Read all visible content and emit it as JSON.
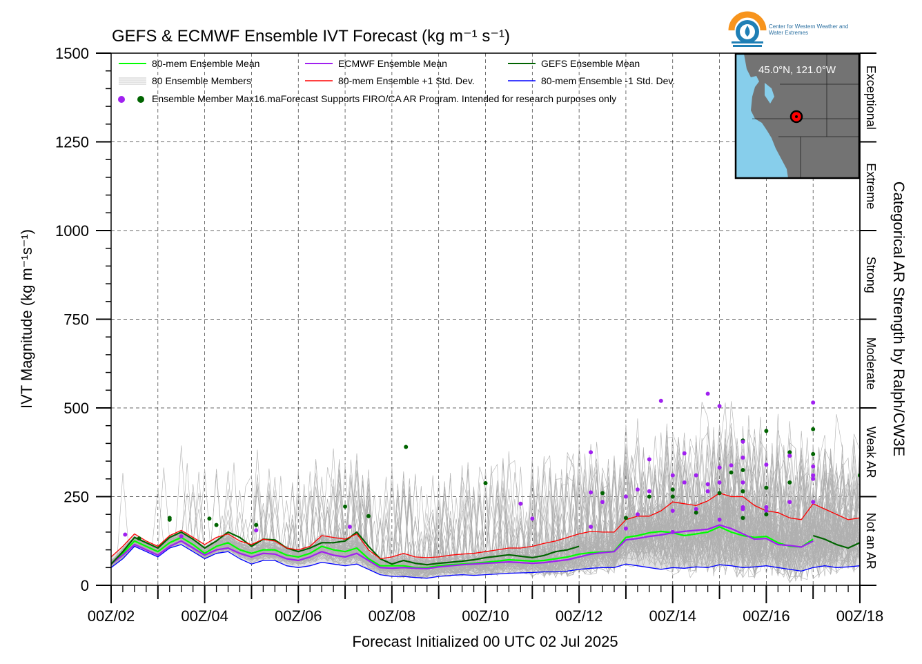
{
  "chart_data": {
    "type": "line",
    "title": "GEFS & ECMWF Ensemble IVT Forecast (kg m⁻¹ s⁻¹)",
    "ylabel": "IVT Magnitude (kg m⁻¹s⁻¹)",
    "xlabel": "Forecast Initialized 00 UTC 02 Jul 2025",
    "right_axis_label": "Categorical AR Strength by Ralph/CW3E",
    "ylim": [
      0,
      1500
    ],
    "xlim_days": [
      2,
      18
    ],
    "grid": true,
    "legend_position": "top-left",
    "y_ticks": [
      "0",
      "250",
      "500",
      "750",
      "1000",
      "1250",
      "1500"
    ],
    "x_ticks": [
      "00Z/02",
      "00Z/04",
      "00Z/06",
      "00Z/08",
      "00Z/10",
      "00Z/12",
      "00Z/14",
      "00Z/16",
      "00Z/18"
    ],
    "categories": [
      "Not an AR",
      "Weak AR",
      "Moderate",
      "Strong",
      "Extreme",
      "Exceptional"
    ],
    "legend": {
      "ens_mean": "80-mem Ensemble Mean",
      "ecmwf_mean": "ECMWF Ensemble Mean",
      "gefs_mean": "GEFS Ensemble Mean",
      "members": "80 Ensemble Members",
      "plus_sd": "80-mem Ensemble +1 Std. Dev.",
      "minus_sd": "80-mem Ensemble -1 Std. Dev.",
      "max_note": "Ensemble Member Max16.maForecast Supports FIRO/CA AR Program. Intended for research purposes only"
    },
    "inset_label": "45.0°N, 121.0°W",
    "logo_text": "Center for Western Weather and Water Extremes",
    "colors": {
      "ens_mean": "#00ff00",
      "ecmwf_mean": "#a020f0",
      "gefs_mean": "#006400",
      "plus_sd": "#ff0000",
      "minus_sd": "#0000ff",
      "members": "#b0b0b0",
      "ocean": "#87ceeb",
      "land": "#737373"
    },
    "series": [
      {
        "name": "80-mem Ensemble Mean",
        "key": "ens_mean",
        "x": [
          2,
          2.25,
          2.5,
          2.75,
          3,
          3.25,
          3.5,
          3.75,
          4,
          4.25,
          4.5,
          4.75,
          5,
          5.25,
          5.5,
          5.75,
          6,
          6.25,
          6.5,
          6.75,
          7,
          7.25,
          7.5,
          7.75,
          8,
          8.25,
          8.5,
          8.75,
          9,
          9.25,
          9.5,
          9.75,
          10,
          10.25,
          10.5,
          10.75,
          11,
          11.25,
          11.5,
          11.75,
          12,
          12.25,
          12.5,
          12.75,
          13,
          13.25,
          13.5,
          13.75,
          14,
          14.25,
          14.5,
          14.75,
          15,
          15.25,
          15.5,
          15.75,
          16,
          16.25,
          16.5,
          16.75,
          17
        ],
        "y": [
          60,
          90,
          125,
          110,
          95,
          120,
          135,
          115,
          90,
          110,
          120,
          100,
          90,
          100,
          100,
          85,
          80,
          90,
          110,
          100,
          95,
          105,
          75,
          55,
          55,
          55,
          50,
          50,
          55,
          58,
          60,
          62,
          65,
          68,
          72,
          70,
          68,
          70,
          75,
          80,
          88,
          92,
          94,
          96,
          135,
          140,
          148,
          152,
          148,
          140,
          145,
          150,
          165,
          150,
          140,
          135,
          138,
          120,
          110,
          108,
          130
        ],
        "width": 2.2
      },
      {
        "name": "ECMWF Ensemble Mean",
        "key": "ecmwf_mean",
        "x": [
          2,
          2.25,
          2.5,
          2.75,
          3,
          3.25,
          3.5,
          3.75,
          4,
          4.25,
          4.5,
          4.75,
          5,
          5.25,
          5.5,
          5.75,
          6,
          6.25,
          6.5,
          6.75,
          7,
          7.25,
          7.5,
          7.75,
          8,
          8.25,
          8.5,
          8.75,
          9,
          9.25,
          9.5,
          9.75,
          10,
          10.25,
          10.5,
          10.75,
          11,
          11.25,
          11.5,
          11.75,
          12,
          12.25,
          12.5,
          12.75,
          13,
          13.25,
          13.5,
          13.75,
          14,
          14.25,
          14.5,
          14.75,
          15,
          15.25,
          15.5,
          15.75,
          16,
          16.25,
          16.5,
          16.75,
          17
        ],
        "y": [
          60,
          85,
          115,
          100,
          85,
          110,
          125,
          105,
          85,
          100,
          105,
          90,
          80,
          90,
          88,
          75,
          70,
          80,
          95,
          85,
          80,
          90,
          70,
          50,
          48,
          50,
          48,
          47,
          52,
          55,
          58,
          60,
          62,
          64,
          66,
          64,
          62,
          64,
          68,
          72,
          80,
          88,
          92,
          95,
          128,
          132,
          138,
          142,
          148,
          152,
          155,
          158,
          170,
          160,
          145,
          130,
          132,
          115,
          112,
          108,
          125
        ],
        "width": 2.2
      },
      {
        "name": "GEFS Ensemble Mean",
        "key": "gefs_mean",
        "x": [
          2,
          2.25,
          2.5,
          2.75,
          3,
          3.25,
          3.5,
          3.75,
          4,
          4.25,
          4.5,
          4.75,
          5,
          5.25,
          5.5,
          5.75,
          6,
          6.25,
          6.5,
          6.75,
          7,
          7.25,
          7.5,
          7.75,
          8,
          8.25,
          8.5,
          8.75,
          9,
          9.25,
          9.5,
          9.75,
          10,
          10.25,
          10.5,
          10.75,
          11,
          11.25,
          11.5,
          11.75,
          12,
          17,
          17.25,
          17.5,
          17.75,
          18
        ],
        "y": [
          60,
          95,
          135,
          120,
          105,
          135,
          150,
          130,
          105,
          125,
          150,
          135,
          110,
          130,
          128,
          105,
          95,
          105,
          120,
          120,
          125,
          150,
          110,
          75,
          60,
          70,
          62,
          58,
          62,
          65,
          68,
          72,
          78,
          82,
          86,
          82,
          78,
          84,
          95,
          100,
          110,
          140,
          130,
          115,
          105,
          120
        ],
        "width": 2.2
      },
      {
        "name": "80-mem Ensemble +1 Std. Dev.",
        "key": "plus_sd",
        "x": [
          2,
          2.25,
          2.5,
          2.75,
          3,
          3.25,
          3.5,
          3.75,
          4,
          4.25,
          4.5,
          4.75,
          5,
          5.25,
          5.5,
          5.75,
          6,
          6.25,
          6.5,
          6.75,
          7,
          7.25,
          7.5,
          7.75,
          8,
          8.25,
          8.5,
          8.75,
          9,
          9.25,
          9.5,
          9.75,
          10,
          10.25,
          10.5,
          10.75,
          11,
          11.25,
          11.5,
          11.75,
          12,
          12.25,
          12.5,
          12.75,
          13,
          13.25,
          13.5,
          13.75,
          14,
          14.25,
          14.5,
          14.75,
          15,
          15.25,
          15.5,
          15.75,
          16,
          16.25,
          16.5,
          16.75,
          17,
          17.25,
          17.5,
          17.75,
          18
        ],
        "y": [
          80,
          110,
          145,
          125,
          110,
          140,
          155,
          135,
          115,
          135,
          145,
          125,
          115,
          130,
          125,
          105,
          100,
          110,
          140,
          135,
          130,
          145,
          100,
          75,
          80,
          90,
          80,
          78,
          80,
          85,
          88,
          90,
          95,
          100,
          105,
          105,
          110,
          118,
          125,
          135,
          145,
          152,
          150,
          150,
          185,
          195,
          195,
          210,
          235,
          230,
          225,
          238,
          260,
          250,
          250,
          225,
          210,
          205,
          190,
          185,
          230,
          215,
          200,
          185,
          190
        ],
        "width": 1.3
      },
      {
        "name": "80-mem Ensemble -1 Std. Dev.",
        "key": "minus_sd",
        "x": [
          2,
          2.25,
          2.5,
          2.75,
          3,
          3.25,
          3.5,
          3.75,
          4,
          4.25,
          4.5,
          4.75,
          5,
          5.25,
          5.5,
          5.75,
          6,
          6.25,
          6.5,
          6.75,
          7,
          7.25,
          7.5,
          7.75,
          8,
          8.25,
          8.5,
          8.75,
          9,
          9.25,
          9.5,
          9.75,
          10,
          10.25,
          10.5,
          10.75,
          11,
          11.25,
          11.5,
          11.75,
          12,
          12.25,
          12.5,
          12.75,
          13,
          13.25,
          13.5,
          13.75,
          14,
          14.25,
          14.5,
          14.75,
          15,
          15.25,
          15.5,
          15.75,
          16,
          16.25,
          16.5,
          16.75,
          17,
          17.25,
          17.5,
          17.75,
          18
        ],
        "y": [
          50,
          75,
          110,
          95,
          80,
          105,
          115,
          95,
          75,
          90,
          95,
          75,
          60,
          70,
          70,
          55,
          50,
          55,
          65,
          60,
          55,
          60,
          45,
          30,
          25,
          25,
          22,
          20,
          25,
          28,
          30,
          28,
          30,
          32,
          34,
          35,
          36,
          38,
          38,
          40,
          45,
          48,
          50,
          50,
          60,
          55,
          50,
          45,
          50,
          48,
          52,
          50,
          58,
          55,
          50,
          52,
          55,
          50,
          45,
          40,
          50,
          55,
          50,
          52,
          55
        ],
        "width": 1.3
      }
    ],
    "max_points": [
      {
        "x": 2.3,
        "y": 143,
        "c": "ecmwf"
      },
      {
        "x": 2.6,
        "y": 132,
        "c": "gefs"
      },
      {
        "x": 3.25,
        "y": 185,
        "c": "gefs"
      },
      {
        "x": 3.25,
        "y": 190,
        "c": "gefs"
      },
      {
        "x": 3.5,
        "y": 138,
        "c": "ecmwf"
      },
      {
        "x": 4.1,
        "y": 188,
        "c": "gefs"
      },
      {
        "x": 4.25,
        "y": 170,
        "c": "gefs"
      },
      {
        "x": 5.1,
        "y": 170,
        "c": "gefs"
      },
      {
        "x": 5.1,
        "y": 155,
        "c": "ecmwf"
      },
      {
        "x": 7.0,
        "y": 222,
        "c": "gefs"
      },
      {
        "x": 7.1,
        "y": 165,
        "c": "ecmwf"
      },
      {
        "x": 7.5,
        "y": 195,
        "c": "gefs"
      },
      {
        "x": 8.3,
        "y": 390,
        "c": "gefs"
      },
      {
        "x": 10.0,
        "y": 288,
        "c": "gefs"
      },
      {
        "x": 10.75,
        "y": 230,
        "c": "ecmwf"
      },
      {
        "x": 11.0,
        "y": 188,
        "c": "ecmwf"
      },
      {
        "x": 12.25,
        "y": 375,
        "c": "ecmwf"
      },
      {
        "x": 12.25,
        "y": 262,
        "c": "ecmwf"
      },
      {
        "x": 12.25,
        "y": 165,
        "c": "ecmwf"
      },
      {
        "x": 12.5,
        "y": 260,
        "c": "gefs"
      },
      {
        "x": 12.5,
        "y": 235,
        "c": "ecmwf"
      },
      {
        "x": 13.0,
        "y": 250,
        "c": "ecmwf"
      },
      {
        "x": 13.0,
        "y": 190,
        "c": "gefs"
      },
      {
        "x": 13.0,
        "y": 160,
        "c": "ecmwf"
      },
      {
        "x": 13.25,
        "y": 270,
        "c": "ecmwf"
      },
      {
        "x": 13.25,
        "y": 200,
        "c": "ecmwf"
      },
      {
        "x": 13.5,
        "y": 355,
        "c": "ecmwf"
      },
      {
        "x": 13.5,
        "y": 265,
        "c": "ecmwf"
      },
      {
        "x": 13.5,
        "y": 250,
        "c": "gefs"
      },
      {
        "x": 13.75,
        "y": 520,
        "c": "ecmwf"
      },
      {
        "x": 14.0,
        "y": 310,
        "c": "ecmwf"
      },
      {
        "x": 14.0,
        "y": 270,
        "c": "gefs"
      },
      {
        "x": 14.0,
        "y": 250,
        "c": "gefs"
      },
      {
        "x": 14.0,
        "y": 210,
        "c": "ecmwf"
      },
      {
        "x": 14.0,
        "y": 150,
        "c": "ecmwf"
      },
      {
        "x": 14.25,
        "y": 372,
        "c": "ecmwf"
      },
      {
        "x": 14.25,
        "y": 290,
        "c": "ecmwf"
      },
      {
        "x": 14.5,
        "y": 310,
        "c": "ecmwf"
      },
      {
        "x": 14.5,
        "y": 215,
        "c": "ecmwf"
      },
      {
        "x": 14.5,
        "y": 205,
        "c": "gefs"
      },
      {
        "x": 14.75,
        "y": 540,
        "c": "ecmwf"
      },
      {
        "x": 14.75,
        "y": 285,
        "c": "ecmwf"
      },
      {
        "x": 14.75,
        "y": 265,
        "c": "ecmwf"
      },
      {
        "x": 15.0,
        "y": 505,
        "c": "ecmwf"
      },
      {
        "x": 15.0,
        "y": 332,
        "c": "ecmwf"
      },
      {
        "x": 15.0,
        "y": 290,
        "c": "ecmwf"
      },
      {
        "x": 15.0,
        "y": 260,
        "c": "gefs"
      },
      {
        "x": 15.0,
        "y": 185,
        "c": "ecmwf"
      },
      {
        "x": 15.25,
        "y": 338,
        "c": "ecmwf"
      },
      {
        "x": 15.25,
        "y": 318,
        "c": "gefs"
      },
      {
        "x": 15.5,
        "y": 408,
        "c": "gefs"
      },
      {
        "x": 15.5,
        "y": 405,
        "c": "ecmwf"
      },
      {
        "x": 15.5,
        "y": 360,
        "c": "ecmwf"
      },
      {
        "x": 15.5,
        "y": 325,
        "c": "gefs"
      },
      {
        "x": 15.5,
        "y": 290,
        "c": "ecmwf"
      },
      {
        "x": 15.5,
        "y": 265,
        "c": "gefs"
      },
      {
        "x": 15.5,
        "y": 220,
        "c": "ecmwf"
      },
      {
        "x": 15.5,
        "y": 215,
        "c": "ecmwf"
      },
      {
        "x": 15.5,
        "y": 190,
        "c": "gefs"
      },
      {
        "x": 16.0,
        "y": 435,
        "c": "gefs"
      },
      {
        "x": 16.0,
        "y": 340,
        "c": "ecmwf"
      },
      {
        "x": 16.0,
        "y": 275,
        "c": "gefs"
      },
      {
        "x": 16.0,
        "y": 220,
        "c": "ecmwf"
      },
      {
        "x": 16.0,
        "y": 210,
        "c": "ecmwf"
      },
      {
        "x": 16.0,
        "y": 200,
        "c": "gefs"
      },
      {
        "x": 16.5,
        "y": 375,
        "c": "gefs"
      },
      {
        "x": 16.5,
        "y": 365,
        "c": "ecmwf"
      },
      {
        "x": 16.5,
        "y": 290,
        "c": "gefs"
      },
      {
        "x": 16.5,
        "y": 235,
        "c": "ecmwf"
      },
      {
        "x": 17.0,
        "y": 515,
        "c": "ecmwf"
      },
      {
        "x": 17.0,
        "y": 440,
        "c": "gefs"
      },
      {
        "x": 17.0,
        "y": 370,
        "c": "gefs"
      },
      {
        "x": 17.0,
        "y": 335,
        "c": "ecmwf"
      },
      {
        "x": 17.0,
        "y": 310,
        "c": "ecmwf"
      },
      {
        "x": 17.0,
        "y": 300,
        "c": "ecmwf"
      },
      {
        "x": 17.0,
        "y": 235,
        "c": "ecmwf"
      },
      {
        "x": 18.0,
        "y": 310,
        "c": "gefs"
      }
    ]
  }
}
